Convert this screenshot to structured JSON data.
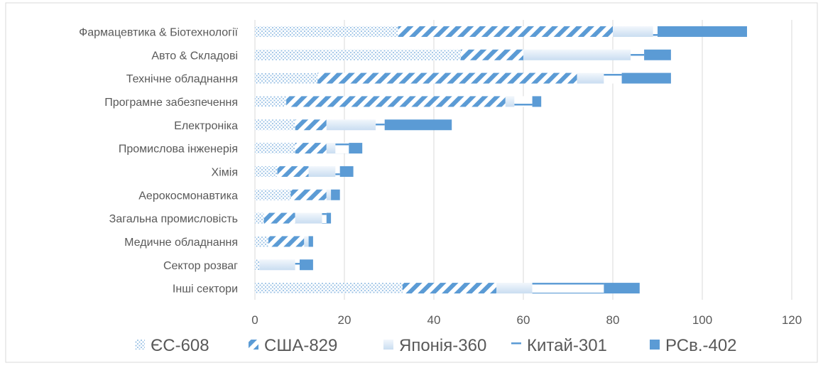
{
  "chart_data": {
    "type": "bar",
    "orientation": "horizontal",
    "stacked": true,
    "categories": [
      "Фармацевтика & Біотехнології",
      "Авто & Складові",
      "Технічне обладнання",
      "Програмне забезпечення",
      "Електроніка",
      "Промислова інженерія",
      "Хімія",
      "Аерокосмонавтика",
      "Загальна промисловість",
      "Медичне обладнання",
      "Сектор розваг",
      "Інші сектори"
    ],
    "series": [
      {
        "name": "ЄС-608",
        "color": "#9dc3e6",
        "values": [
          32,
          46,
          14,
          7,
          9,
          9,
          5,
          8,
          2,
          3,
          1,
          33
        ]
      },
      {
        "name": "США-829",
        "color": "#5b9bd5",
        "values": [
          48,
          14,
          58,
          49,
          7,
          7,
          7,
          8,
          7,
          8,
          0,
          21
        ]
      },
      {
        "name": "Японія-360",
        "color": "#deebf7",
        "values": [
          9,
          24,
          6,
          2,
          11,
          2,
          6,
          1,
          6,
          1,
          8,
          8
        ]
      },
      {
        "name": "Китай-301",
        "color": "#5b9bd5",
        "values": [
          1,
          3,
          4,
          4,
          2,
          3,
          1,
          0,
          1,
          0,
          1,
          16
        ]
      },
      {
        "name": "РСв.-402",
        "color": "#5b9bd5",
        "values": [
          20,
          6,
          11,
          2,
          15,
          3,
          3,
          2,
          1,
          1,
          3,
          8
        ]
      }
    ],
    "xlim": [
      0,
      120
    ],
    "xticks": [
      0,
      20,
      40,
      60,
      80,
      100,
      120
    ],
    "grid": true,
    "legend": "bottom"
  }
}
